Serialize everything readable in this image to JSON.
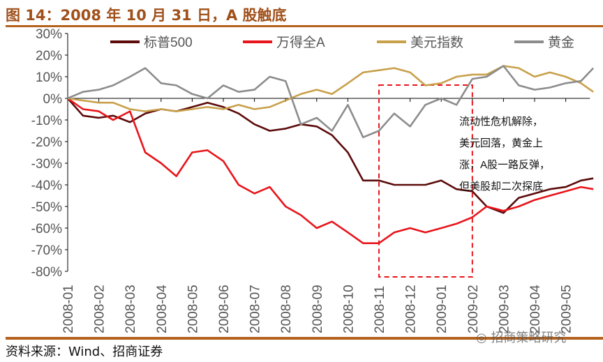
{
  "header": {
    "title": "图 14：2008 年 10 月 31 日，A 股触底"
  },
  "footer": {
    "source": "资料来源：Wind、招商证券",
    "watermark": "招商策略研究"
  },
  "chart_data": {
    "type": "line",
    "title": "",
    "xlabel": "",
    "ylabel": "",
    "ylim": [
      -80,
      30
    ],
    "yticks": [
      "30%",
      "20%",
      "10%",
      "0%",
      "-10%",
      "-20%",
      "-30%",
      "-40%",
      "-50%",
      "-60%",
      "-70%",
      "-80%"
    ],
    "ytick_values": [
      30,
      20,
      10,
      0,
      -10,
      -20,
      -30,
      -40,
      -50,
      -60,
      -70,
      -80
    ],
    "xticks": [
      "2008-01",
      "2008-02",
      "2008-03",
      "2008-04",
      "2008-05",
      "2008-06",
      "2008-07",
      "2008-08",
      "2008-09",
      "2008-10",
      "2008-11",
      "2008-12",
      "2009-01",
      "2009-02",
      "2009-03",
      "2009-04",
      "2009-05"
    ],
    "legend_position": "top",
    "grid": false,
    "x": [
      "2008-01-01",
      "2008-01-16",
      "2008-02-01",
      "2008-02-15",
      "2008-03-01",
      "2008-03-16",
      "2008-04-01",
      "2008-04-16",
      "2008-05-01",
      "2008-05-16",
      "2008-06-01",
      "2008-06-16",
      "2008-07-01",
      "2008-07-16",
      "2008-08-01",
      "2008-08-16",
      "2008-09-01",
      "2008-09-16",
      "2008-10-01",
      "2008-10-16",
      "2008-11-01",
      "2008-11-16",
      "2008-12-01",
      "2008-12-16",
      "2009-01-01",
      "2009-01-16",
      "2009-02-01",
      "2009-02-15",
      "2009-03-01",
      "2009-03-16",
      "2009-04-01",
      "2009-04-16",
      "2009-05-01",
      "2009-05-16",
      "2009-05-28"
    ],
    "series": [
      {
        "name": "标普500",
        "color": "#5c0a0a",
        "values": [
          0,
          -8,
          -9,
          -8,
          -11,
          -7,
          -5,
          -6,
          -4,
          -2,
          -4,
          -7,
          -12,
          -15,
          -14,
          -12,
          -13,
          -17,
          -25,
          -38,
          -38,
          -40,
          -40,
          -40,
          -38,
          -42,
          -43,
          -50,
          -53,
          -46,
          -44,
          -42,
          -41,
          -38,
          -37
        ]
      },
      {
        "name": "万得全A",
        "color": "#e8141a",
        "values": [
          0,
          -5,
          -6,
          -10,
          -6,
          -25,
          -30,
          -36,
          -25,
          -24,
          -29,
          -40,
          -44,
          -41,
          -50,
          -54,
          -60,
          -57,
          -62,
          -67,
          -67,
          -62,
          -60,
          -62,
          -60,
          -58,
          -55,
          -50,
          -52,
          -50,
          -47,
          -45,
          -43,
          -41,
          -42
        ]
      },
      {
        "name": "美元指数",
        "color": "#c8a04a",
        "values": [
          0,
          -1,
          -2,
          -2,
          -5,
          -6,
          -5,
          -6,
          -5,
          -4,
          -5,
          -3,
          -5,
          -4,
          -1,
          2,
          4,
          2,
          7,
          12,
          13,
          14,
          12,
          6,
          7,
          10,
          11,
          11,
          15,
          14,
          10,
          12,
          10,
          7,
          3
        ]
      },
      {
        "name": "黄金",
        "color": "#8c8c8c",
        "values": [
          0,
          3,
          4,
          6,
          10,
          14,
          7,
          6,
          2,
          0,
          6,
          3,
          4,
          10,
          8,
          -12,
          -9,
          -15,
          -3,
          -18,
          -15,
          -7,
          -13,
          -3,
          0,
          -3,
          9,
          10,
          15,
          6,
          4,
          5,
          7,
          8,
          14
        ]
      }
    ],
    "highlight": {
      "from": "2008-11-01",
      "to": "2009-02-01",
      "ylim": [
        -85,
        25
      ],
      "color": "#e8141a"
    },
    "annotation": [
      "流动性危机解除，",
      "美元回落，黄金上",
      "涨，A股一路反弹，",
      "但美股却二次探底"
    ]
  }
}
